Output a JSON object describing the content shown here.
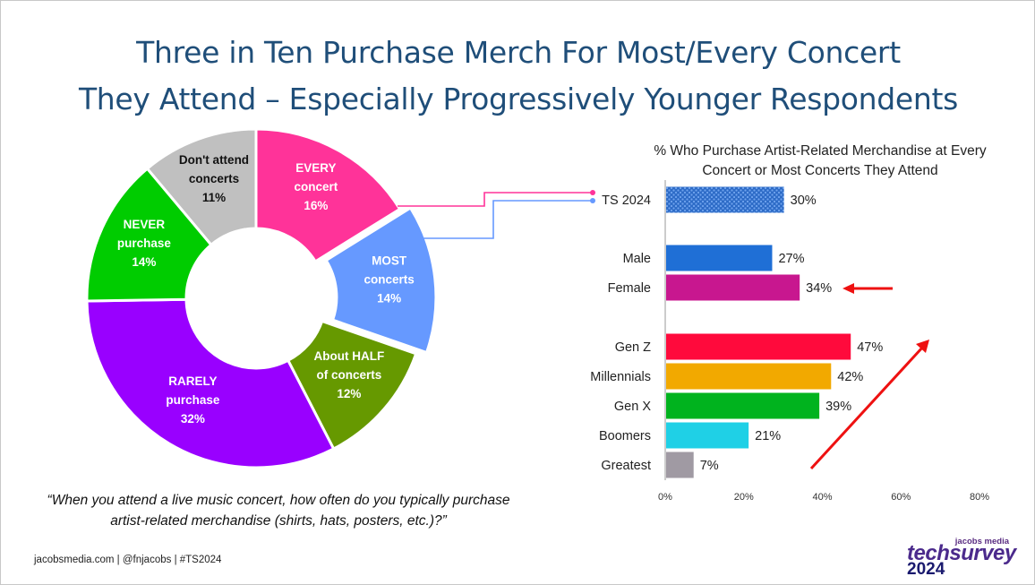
{
  "title": {
    "line1": "Three in Ten Purchase Merch For Most/Every Concert",
    "line2": "They Attend – Especially Progressively Younger Respondents"
  },
  "question": "“When you attend a live music concert, how often do you typically purchase artist-related merchandise (shirts, hats, posters, etc.)?”",
  "footer": "jacobsmedia.com   |   @fnjacobs   |   #TS2024",
  "logo": {
    "top": "jacobs media",
    "main": "techsurvey",
    "year": "2024"
  },
  "chart_data": [
    {
      "type": "pie",
      "donut": true,
      "slices": [
        {
          "label": [
            "EVERY",
            "concert",
            "16%"
          ],
          "value": 16,
          "color": "#ff3399",
          "exploded": false
        },
        {
          "label": [
            "MOST",
            "concerts",
            "14%"
          ],
          "value": 14,
          "color": "#6699ff",
          "exploded": true
        },
        {
          "label": [
            "About HALF",
            "of concerts",
            "12%"
          ],
          "value": 12,
          "color": "#669900",
          "exploded": false
        },
        {
          "label": [
            "RARELY",
            "purchase",
            "32%"
          ],
          "value": 32,
          "color": "#9900ff",
          "exploded": false
        },
        {
          "label": [
            "NEVER",
            "purchase",
            "14%"
          ],
          "value": 14,
          "color": "#00cc00",
          "exploded": false
        },
        {
          "label": [
            "Don't attend",
            "concerts",
            "11%"
          ],
          "value": 11,
          "color": "#c0c0c0",
          "exploded": false
        }
      ]
    },
    {
      "type": "bar",
      "orientation": "horizontal",
      "title": "% Who Purchase Artist-Related Merchandise at Every Concert or Most Concerts They Attend",
      "categories": [
        "TS 2024",
        "Male",
        "Female",
        "Gen Z",
        "Millennials",
        "Gen X",
        "Boomers",
        "Greatest"
      ],
      "values": [
        30,
        27,
        34,
        47,
        42,
        39,
        21,
        7
      ],
      "value_labels": [
        "30%",
        "27%",
        "34%",
        "47%",
        "42%",
        "39%",
        "21%",
        "7%"
      ],
      "colors": [
        "#3a7bd5",
        "#1f6fd6",
        "#c8178f",
        "#ff0a3c",
        "#f2a900",
        "#00b31e",
        "#1fd0e6",
        "#a09aa3"
      ],
      "patterned": [
        true,
        false,
        false,
        false,
        false,
        false,
        false,
        false
      ],
      "xlim": [
        0,
        80
      ],
      "xticks": [
        "0%",
        "20%",
        "40%",
        "60%",
        "80%"
      ],
      "annotation_colors": {
        "arrow": "#ee1111",
        "connector_every": "#ff3399",
        "connector_most": "#6699ff"
      }
    }
  ]
}
